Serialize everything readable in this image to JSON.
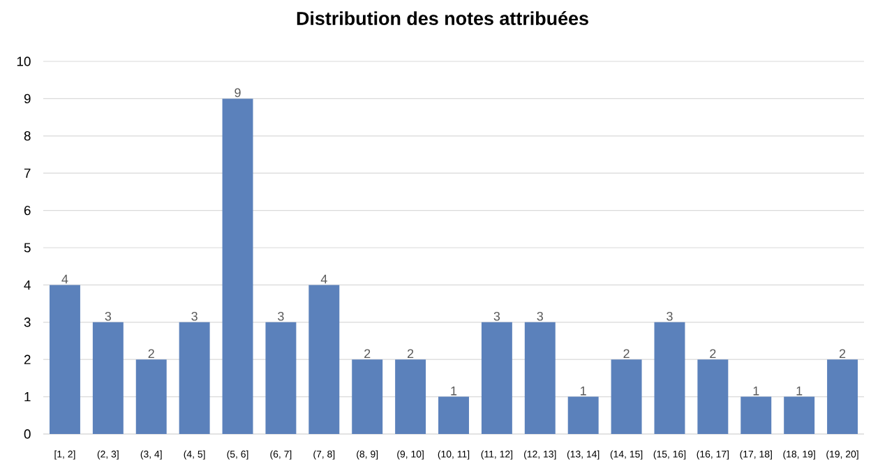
{
  "chart_data": {
    "type": "bar",
    "title": "Distribution des notes attribuées",
    "categories": [
      "[1, 2]",
      "(2, 3]",
      "(3, 4]",
      "(4, 5]",
      "(5, 6]",
      "(6, 7]",
      "(7, 8]",
      "(8, 9]",
      "(9, 10]",
      "(10, 11]",
      "(11, 12]",
      "(12, 13]",
      "(13, 14]",
      "(14, 15]",
      "(15, 16]",
      "(16, 17]",
      "(17, 18]",
      "(18, 19]",
      "(19, 20]"
    ],
    "values": [
      4,
      3,
      2,
      3,
      9,
      3,
      4,
      2,
      2,
      1,
      3,
      3,
      1,
      2,
      3,
      2,
      1,
      1,
      2
    ],
    "color": "#5b81bb",
    "ylim": [
      0,
      10
    ],
    "yticks": [
      0,
      1,
      2,
      3,
      4,
      5,
      6,
      7,
      8,
      9,
      10
    ],
    "grid": "y",
    "data_labels": true
  }
}
